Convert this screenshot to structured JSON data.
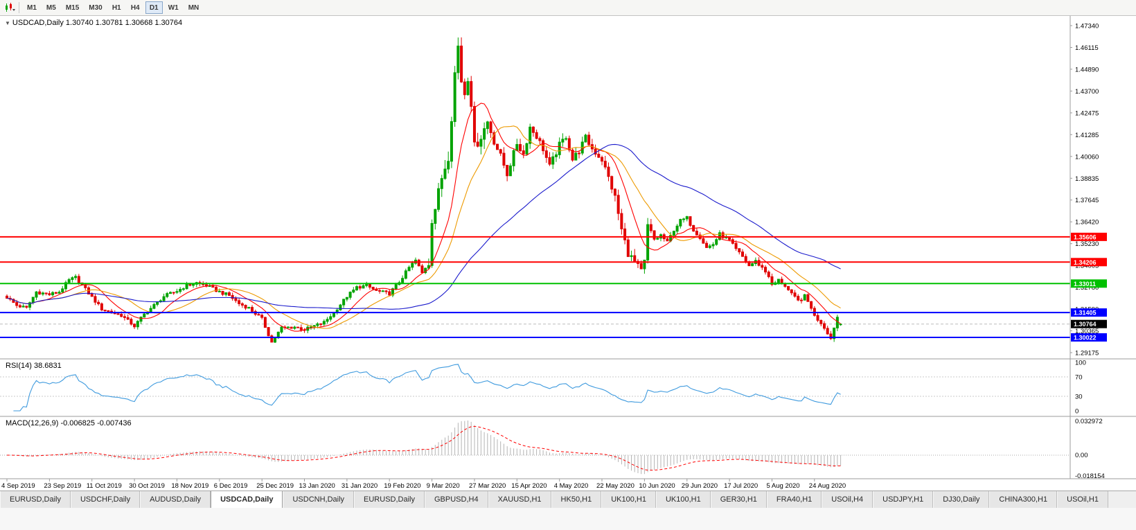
{
  "toolbar": {
    "timeframes": [
      "M1",
      "M5",
      "M15",
      "M30",
      "H1",
      "H4",
      "D1",
      "W1",
      "MN"
    ],
    "active_timeframe": "D1"
  },
  "chart": {
    "title": "USDCAD,Daily 1.30740 1.30781 1.30668 1.30764",
    "shift_marker": "▼"
  },
  "indicators": {
    "rsi_label": "RSI(14) 38.6831",
    "macd_label": "MACD(12,26,9) -0.006825 -0.007436"
  },
  "colors": {
    "up": "#00A300",
    "down": "#E00000",
    "axis_text": "#000000",
    "separator": "#9B9B9B",
    "grid_dotted": "#C8C8C8",
    "rsi_line": "#3E9ADE",
    "macd_hist": "#B4B4B4",
    "macd_signal": "#FF0000",
    "bid_line": "#BBBBBB"
  },
  "chart_data": {
    "type": "candlestick+indicators",
    "symbol": "USDCAD",
    "timeframe": "Daily",
    "bar_count": 256,
    "ohlc_current": {
      "open": 1.3074,
      "high": 1.30781,
      "low": 1.30668,
      "close": 1.30764
    },
    "spike_high": 1.4668,
    "price_axis_labels": [
      "1.47340",
      "1.46115",
      "1.44890",
      "1.43700",
      "1.42475",
      "1.41285",
      "1.40060",
      "1.38835",
      "1.37645",
      "1.36420",
      "1.35230",
      "1.34005",
      "1.32780",
      "1.31590",
      "1.30365",
      "1.29175"
    ],
    "price_axis_range": {
      "top_price": 1.4734,
      "bottom_price": 1.29175
    },
    "levels": [
      {
        "price": 1.35606,
        "label": "1.35606",
        "color": "#FF0000",
        "width": 2
      },
      {
        "price": 1.34206,
        "label": "1.34206",
        "color": "#FF0000",
        "width": 2
      },
      {
        "price": 1.33011,
        "label": "1.33011",
        "color": "#00C000",
        "width": 2
      },
      {
        "price": 1.31405,
        "label": "1.31405",
        "color": "#0000FF",
        "width": 2
      },
      {
        "price": 1.30022,
        "label": "1.30022",
        "color": "#0000FF",
        "width": 2
      }
    ],
    "current_price_tag": {
      "price": 1.30764,
      "label": "1.30764",
      "bg": "#000000"
    },
    "moving_averages": [
      {
        "period": 10,
        "color": "#FF0000"
      },
      {
        "period": 20,
        "color": "#ED9A00"
      },
      {
        "period": 55,
        "color": "#1A1ACC"
      }
    ],
    "date_labels": [
      {
        "i": 0,
        "t": "4 Sep 2019"
      },
      {
        "i": 13,
        "t": "23 Sep 2019"
      },
      {
        "i": 26,
        "t": "11 Oct 2019"
      },
      {
        "i": 39,
        "t": "30 Oct 2019"
      },
      {
        "i": 52,
        "t": "18 Nov 2019"
      },
      {
        "i": 65,
        "t": "6 Dec 2019"
      },
      {
        "i": 78,
        "t": "25 Dec 2019"
      },
      {
        "i": 91,
        "t": "13 Jan 2020"
      },
      {
        "i": 104,
        "t": "31 Jan 2020"
      },
      {
        "i": 117,
        "t": "19 Feb 2020"
      },
      {
        "i": 130,
        "t": "9 Mar 2020"
      },
      {
        "i": 143,
        "t": "27 Mar 2020"
      },
      {
        "i": 156,
        "t": "15 Apr 2020"
      },
      {
        "i": 169,
        "t": "4 May 2020"
      },
      {
        "i": 182,
        "t": "22 May 2020"
      },
      {
        "i": 195,
        "t": "10 Jun 2020"
      },
      {
        "i": 208,
        "t": "29 Jun 2020"
      },
      {
        "i": 221,
        "t": "17 Jul 2020"
      },
      {
        "i": 234,
        "t": "5 Aug 2020"
      },
      {
        "i": 247,
        "t": "24 Aug 2020"
      }
    ],
    "close_anchors": [
      [
        0,
        1.3225
      ],
      [
        3,
        1.318
      ],
      [
        6,
        1.3165
      ],
      [
        9,
        1.3255
      ],
      [
        13,
        1.324
      ],
      [
        16,
        1.3255
      ],
      [
        19,
        1.332
      ],
      [
        21,
        1.3335
      ],
      [
        24,
        1.327
      ],
      [
        26,
        1.3225
      ],
      [
        29,
        1.316
      ],
      [
        32,
        1.314
      ],
      [
        35,
        1.3125
      ],
      [
        39,
        1.3065
      ],
      [
        42,
        1.313
      ],
      [
        45,
        1.318
      ],
      [
        48,
        1.323
      ],
      [
        52,
        1.326
      ],
      [
        55,
        1.329
      ],
      [
        58,
        1.3305
      ],
      [
        61,
        1.329
      ],
      [
        65,
        1.3255
      ],
      [
        68,
        1.3235
      ],
      [
        71,
        1.319
      ],
      [
        74,
        1.3165
      ],
      [
        78,
        1.3105
      ],
      [
        81,
        1.2975
      ],
      [
        84,
        1.3055
      ],
      [
        88,
        1.306
      ],
      [
        91,
        1.3045
      ],
      [
        94,
        1.3065
      ],
      [
        97,
        1.3085
      ],
      [
        100,
        1.314
      ],
      [
        104,
        1.323
      ],
      [
        107,
        1.328
      ],
      [
        110,
        1.329
      ],
      [
        113,
        1.326
      ],
      [
        117,
        1.3245
      ],
      [
        120,
        1.331
      ],
      [
        123,
        1.339
      ],
      [
        125,
        1.343
      ],
      [
        127,
        1.336
      ],
      [
        129,
        1.342
      ],
      [
        130,
        1.366
      ],
      [
        131,
        1.372
      ],
      [
        133,
        1.389
      ],
      [
        135,
        1.401
      ],
      [
        136,
        1.423
      ],
      [
        137,
        1.447
      ],
      [
        138,
        1.462
      ],
      [
        139,
        1.443
      ],
      [
        140,
        1.436
      ],
      [
        141,
        1.445
      ],
      [
        142,
        1.431
      ],
      [
        143,
        1.406
      ],
      [
        145,
        1.412
      ],
      [
        147,
        1.42
      ],
      [
        149,
        1.409
      ],
      [
        151,
        1.401
      ],
      [
        153,
        1.391
      ],
      [
        156,
        1.408
      ],
      [
        158,
        1.402
      ],
      [
        160,
        1.417
      ],
      [
        162,
        1.412
      ],
      [
        164,
        1.405
      ],
      [
        166,
        1.395
      ],
      [
        169,
        1.407
      ],
      [
        171,
        1.412
      ],
      [
        173,
        1.399
      ],
      [
        175,
        1.404
      ],
      [
        177,
        1.411
      ],
      [
        179,
        1.405
      ],
      [
        182,
        1.399
      ],
      [
        184,
        1.389
      ],
      [
        186,
        1.378
      ],
      [
        188,
        1.36
      ],
      [
        190,
        1.347
      ],
      [
        192,
        1.342
      ],
      [
        194,
        1.337
      ],
      [
        195,
        1.342
      ],
      [
        196,
        1.362
      ],
      [
        198,
        1.3545
      ],
      [
        200,
        1.357
      ],
      [
        202,
        1.353
      ],
      [
        204,
        1.36
      ],
      [
        206,
        1.365
      ],
      [
        208,
        1.3665
      ],
      [
        210,
        1.36
      ],
      [
        212,
        1.356
      ],
      [
        214,
        1.35
      ],
      [
        216,
        1.352
      ],
      [
        218,
        1.3575
      ],
      [
        221,
        1.354
      ],
      [
        223,
        1.349
      ],
      [
        225,
        1.345
      ],
      [
        227,
        1.34
      ],
      [
        229,
        1.3425
      ],
      [
        231,
        1.339
      ],
      [
        233,
        1.3345
      ],
      [
        234,
        1.329
      ],
      [
        236,
        1.332
      ],
      [
        238,
        1.329
      ],
      [
        240,
        1.324
      ],
      [
        242,
        1.3205
      ],
      [
        244,
        1.323
      ],
      [
        246,
        1.317
      ],
      [
        247,
        1.312
      ],
      [
        249,
        1.3085
      ],
      [
        251,
        1.303
      ],
      [
        252,
        1.2995
      ],
      [
        253,
        1.306
      ],
      [
        254,
        1.3115
      ],
      [
        255,
        1.30764
      ]
    ],
    "volatility_regions": [
      [
        0,
        128,
        0.0022
      ],
      [
        129,
        146,
        0.0075
      ],
      [
        147,
        185,
        0.0045
      ],
      [
        186,
        199,
        0.005
      ],
      [
        200,
        255,
        0.0025
      ]
    ],
    "rsi": {
      "period": 14,
      "last": 38.6831,
      "axis_labels": [
        "100",
        "70",
        "30",
        "0"
      ],
      "dashed_levels": [
        70,
        30
      ]
    },
    "macd": {
      "params": [
        12,
        26,
        9
      ],
      "main": -0.006825,
      "signal": -0.007436,
      "axis_labels": [
        "0.032972",
        "0.00",
        "-0.018154"
      ]
    }
  },
  "tabs": [
    {
      "label": "EURUSD,Daily"
    },
    {
      "label": "USDCHF,Daily"
    },
    {
      "label": "AUDUSD,Daily"
    },
    {
      "label": "USDCAD,Daily",
      "active": true
    },
    {
      "label": "USDCNH,Daily"
    },
    {
      "label": "EURUSD,Daily"
    },
    {
      "label": "GBPUSD,H4"
    },
    {
      "label": "XAUUSD,H1"
    },
    {
      "label": "HK50,H1"
    },
    {
      "label": "UK100,H1"
    },
    {
      "label": "UK100,H1"
    },
    {
      "label": "GER30,H1"
    },
    {
      "label": "FRA40,H1"
    },
    {
      "label": "USOil,H4"
    },
    {
      "label": "USDJPY,H1"
    },
    {
      "label": "DJ30,Daily"
    },
    {
      "label": "CHINA300,H1"
    },
    {
      "label": "USOil,H1"
    }
  ]
}
